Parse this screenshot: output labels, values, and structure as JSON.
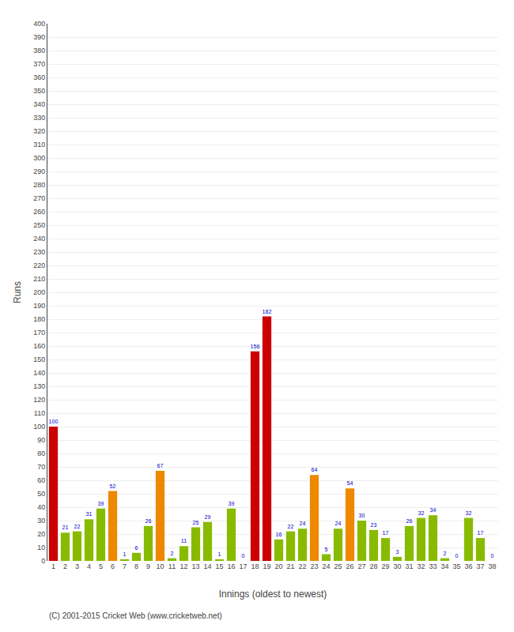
{
  "chart_data": {
    "type": "bar",
    "xlabel": "Innings (oldest to newest)",
    "ylabel": "Runs",
    "annotations": [
      "(C) 2001-2015 Cricket Web (www.cricketweb.net)"
    ],
    "categories": [
      "1",
      "2",
      "3",
      "4",
      "5",
      "6",
      "7",
      "8",
      "9",
      "10",
      "11",
      "12",
      "13",
      "14",
      "15",
      "16",
      "17",
      "18",
      "19",
      "20",
      "21",
      "22",
      "23",
      "24",
      "25",
      "26",
      "27",
      "28",
      "29",
      "30",
      "31",
      "32",
      "33",
      "34",
      "35",
      "36",
      "37",
      "38"
    ],
    "values": [
      100,
      21,
      22,
      31,
      39,
      52,
      1,
      6,
      26,
      67,
      2,
      11,
      25,
      29,
      1,
      39,
      0,
      156,
      182,
      16,
      22,
      24,
      64,
      5,
      24,
      54,
      30,
      23,
      17,
      3,
      26,
      32,
      34,
      2,
      0,
      32,
      17,
      0
    ],
    "colors": [
      "#cc0000",
      "#88bb00",
      "#88bb00",
      "#88bb00",
      "#88bb00",
      "#ee8800",
      "#88bb00",
      "#88bb00",
      "#88bb00",
      "#ee8800",
      "#88bb00",
      "#88bb00",
      "#88bb00",
      "#88bb00",
      "#88bb00",
      "#88bb00",
      "#88bb00",
      "#cc0000",
      "#cc0000",
      "#88bb00",
      "#88bb00",
      "#88bb00",
      "#ee8800",
      "#88bb00",
      "#88bb00",
      "#ee8800",
      "#88bb00",
      "#88bb00",
      "#88bb00",
      "#88bb00",
      "#88bb00",
      "#88bb00",
      "#88bb00",
      "#88bb00",
      "#88bb00",
      "#88bb00",
      "#88bb00",
      "#88bb00"
    ],
    "ylim": [
      0,
      400
    ],
    "yticks": [
      0,
      10,
      20,
      30,
      40,
      50,
      60,
      70,
      80,
      90,
      100,
      110,
      120,
      130,
      140,
      150,
      160,
      170,
      180,
      190,
      200,
      210,
      220,
      230,
      240,
      250,
      260,
      270,
      280,
      290,
      300,
      310,
      320,
      330,
      340,
      350,
      360,
      370,
      380,
      390,
      400
    ],
    "grid": true,
    "data_labels": true
  }
}
